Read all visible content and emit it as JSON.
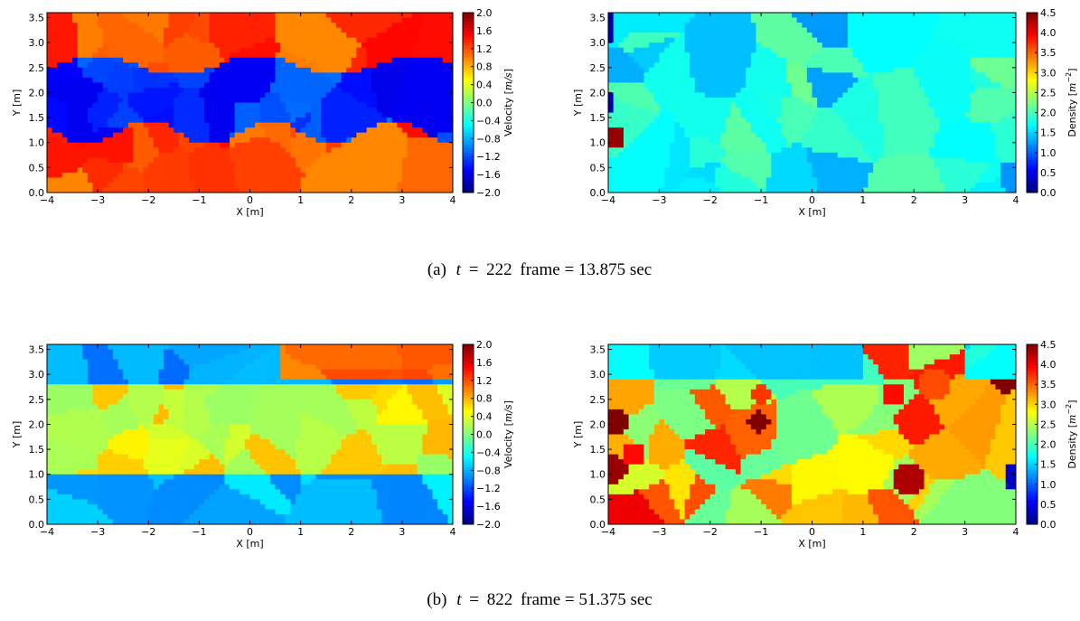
{
  "panels": [
    {
      "caption": {
        "label": "(a)",
        "t_value": "222",
        "rest": "frame = 13.875 sec"
      },
      "charts": [
        {
          "quantity": "velocity",
          "seed": 11,
          "variant": "a-vel"
        },
        {
          "quantity": "density",
          "seed": 23,
          "variant": "a-den"
        }
      ]
    },
    {
      "caption": {
        "label": "(b)",
        "t_value": "822",
        "rest": "frame = 51.375 sec"
      },
      "charts": [
        {
          "quantity": "velocity",
          "seed": 37,
          "variant": "b-vel"
        },
        {
          "quantity": "density",
          "seed": 53,
          "variant": "b-den"
        }
      ]
    }
  ],
  "chart_data": [
    {
      "type": "heatmap",
      "panel": "a",
      "quantity": "velocity",
      "xlabel": "X [m]",
      "ylabel": "Y [m]",
      "xlim": [
        -4,
        4
      ],
      "ylim": [
        0,
        3.6
      ],
      "xticks": [
        "−4",
        "−3",
        "−2",
        "−1",
        "0",
        "1",
        "2",
        "3",
        "4"
      ],
      "yticks": [
        "0.0",
        "0.5",
        "1.0",
        "1.5",
        "2.0",
        "2.5",
        "3.0",
        "3.5"
      ],
      "colorbar": {
        "label": "Velocity [m/s]",
        "label_parts": [
          "Velocity [",
          "m/s",
          "]"
        ],
        "range": [
          -2.0,
          2.0
        ],
        "ticks": [
          "2.0",
          "1.6",
          "1.2",
          "0.8",
          "0.4",
          "0.0",
          "−0.4",
          "−0.8",
          "−1.2",
          "−1.6",
          "−2.0"
        ]
      },
      "regions_description": "positive velocity (~1.2) above a wavy band between Y≈1.3 and Y≈2.7; negative (~−1.2) inside the band; positive (~1.2) below"
    },
    {
      "type": "heatmap",
      "panel": "a",
      "quantity": "density",
      "xlabel": "X [m]",
      "ylabel": "Y [m]",
      "xlim": [
        -4,
        4
      ],
      "ylim": [
        0,
        3.6
      ],
      "xticks": [
        "−4",
        "−3",
        "−2",
        "−1",
        "0",
        "1",
        "2",
        "3",
        "4"
      ],
      "yticks": [
        "0.0",
        "0.5",
        "1.0",
        "1.5",
        "2.0",
        "2.5",
        "3.0",
        "3.5"
      ],
      "colorbar": {
        "label": "Density [m^-2]",
        "label_parts": [
          "Density [",
          "m",
          "−2",
          "]"
        ],
        "range": [
          0.0,
          4.5
        ],
        "ticks": [
          "4.5",
          "4.0",
          "3.5",
          "3.0",
          "2.5",
          "2.0",
          "1.5",
          "1.0",
          "0.5",
          "0.0"
        ]
      }
    },
    {
      "type": "heatmap",
      "panel": "b",
      "quantity": "velocity",
      "xlabel": "X [m]",
      "ylabel": "Y [m]",
      "xlim": [
        -4,
        4
      ],
      "ylim": [
        0,
        3.6
      ],
      "xticks": [
        "−4",
        "−3",
        "−2",
        "−1",
        "0",
        "1",
        "2",
        "3",
        "4"
      ],
      "yticks": [
        "0.0",
        "0.5",
        "1.0",
        "1.5",
        "2.0",
        "2.5",
        "3.0",
        "3.5"
      ],
      "colorbar": {
        "label": "Velocity [m/s]",
        "label_parts": [
          "Velocity [",
          "m/s",
          "]"
        ],
        "range": [
          -2.0,
          2.0
        ],
        "ticks": [
          "2.0",
          "1.6",
          "1.2",
          "0.8",
          "0.4",
          "0.0",
          "−0.4",
          "−0.8",
          "−1.2",
          "−1.6",
          "−2.0"
        ]
      }
    },
    {
      "type": "heatmap",
      "panel": "b",
      "quantity": "density",
      "xlabel": "X [m]",
      "ylabel": "Y [m]",
      "xlim": [
        -4,
        4
      ],
      "ylim": [
        0,
        3.6
      ],
      "xticks": [
        "−4",
        "−3",
        "−2",
        "−1",
        "0",
        "1",
        "2",
        "3",
        "4"
      ],
      "yticks": [
        "0.0",
        "0.5",
        "1.0",
        "1.5",
        "2.0",
        "2.5",
        "3.0",
        "3.5"
      ],
      "colorbar": {
        "label": "Density [m^-2]",
        "label_parts": [
          "Density [",
          "m",
          "−2",
          "]"
        ],
        "range": [
          0.0,
          4.5
        ],
        "ticks": [
          "4.5",
          "4.0",
          "3.5",
          "3.0",
          "2.5",
          "2.0",
          "1.5",
          "1.0",
          "0.5",
          "0.0"
        ]
      }
    }
  ]
}
